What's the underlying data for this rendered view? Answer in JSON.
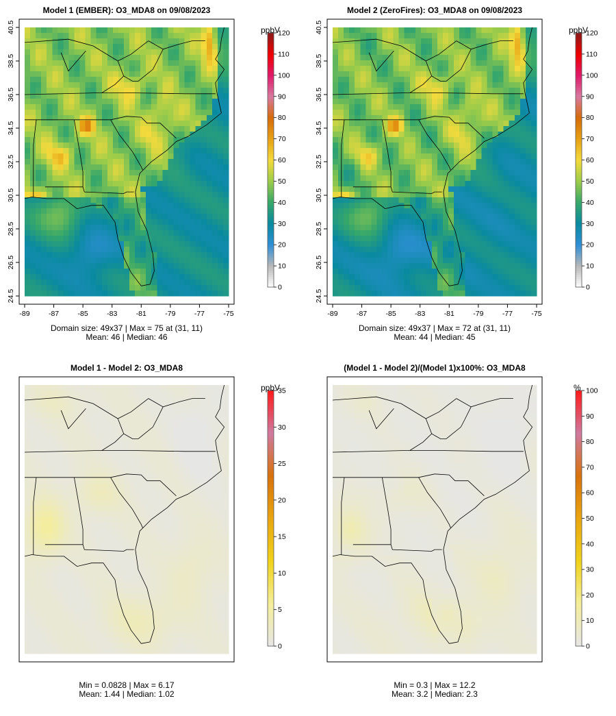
{
  "panels": [
    {
      "id": "p1",
      "title": "Model 1 (EMBER): O3_MDA8 on 09/08/2023",
      "stats_line1": "Domain size: 49x37 | Max = 75 at (31, 11)",
      "stats_line2": "Mean: 46 |  Median: 46",
      "field": "model1",
      "show_axes": true,
      "colorbar": {
        "unit": "ppbV",
        "ticks": [
          "0",
          "10",
          "20",
          "30",
          "40",
          "50",
          "60",
          "70",
          "80",
          "90",
          "100",
          "110",
          "120"
        ],
        "range": [
          0,
          120
        ],
        "palette": "full"
      }
    },
    {
      "id": "p2",
      "title": "Model 2 (ZeroFires): O3_MDA8 on 09/08/2023",
      "stats_line1": "Domain size: 49x37 | Max = 72 at (31, 11)",
      "stats_line2": "Mean: 44 |  Median: 45",
      "field": "model2",
      "show_axes": true,
      "colorbar": {
        "unit": "ppbV",
        "ticks": [
          "0",
          "10",
          "20",
          "30",
          "40",
          "50",
          "60",
          "70",
          "80",
          "90",
          "100",
          "110",
          "120"
        ],
        "range": [
          0,
          120
        ],
        "palette": "full"
      }
    },
    {
      "id": "p3",
      "title": "Model 1 - Model 2: O3_MDA8",
      "stats_line1": "Min = 0.0828 | Max = 6.17",
      "stats_line2": "Mean: 1.44 |  Median: 1.02",
      "field": "diff",
      "show_axes": false,
      "colorbar": {
        "unit": "ppbV",
        "ticks": [
          "0",
          "5",
          "10",
          "15",
          "20",
          "25",
          "30",
          "35"
        ],
        "range": [
          0,
          35
        ],
        "palette": "diff"
      }
    },
    {
      "id": "p4",
      "title": "(Model 1 - Model 2)/(Model 1)x100%: O3_MDA8",
      "stats_line1": "Min = 0.3 | Max = 12.2",
      "stats_line2": "Mean: 3.2 |  Median: 2.3",
      "field": "pct",
      "show_axes": false,
      "colorbar": {
        "unit": "%",
        "ticks": [
          "0",
          "10",
          "20",
          "30",
          "40",
          "50",
          "60",
          "70",
          "80",
          "90",
          "100"
        ],
        "range": [
          0,
          100
        ],
        "palette": "diff"
      }
    }
  ],
  "axes": {
    "x_ticks": [
      "-89",
      "-87",
      "-85",
      "-83",
      "-81",
      "-79",
      "-77",
      "-75"
    ],
    "y_ticks": [
      "24.5",
      "26.5",
      "28.5",
      "30.5",
      "32.5",
      "34.5",
      "36.5",
      "38.5",
      "40.5"
    ],
    "lon_range": [
      -89,
      -75
    ],
    "lat_range": [
      24.5,
      40.5
    ]
  },
  "colors": {
    "full_stops": [
      "#ffffff",
      "#b8b8b8",
      "#2f8fd6",
      "#0a8aa0",
      "#37a76a",
      "#9ccc4a",
      "#f4da3c",
      "#e7a114",
      "#d66b0b",
      "#d77aa0",
      "#e0186a",
      "#f00000",
      "#8b1a1a"
    ],
    "diff_stops": [
      "#e6e6e6",
      "#f4ee9a",
      "#f0d21a",
      "#e9a510",
      "#d8720c",
      "#cf7aa0",
      "#ff1a1a"
    ]
  }
}
